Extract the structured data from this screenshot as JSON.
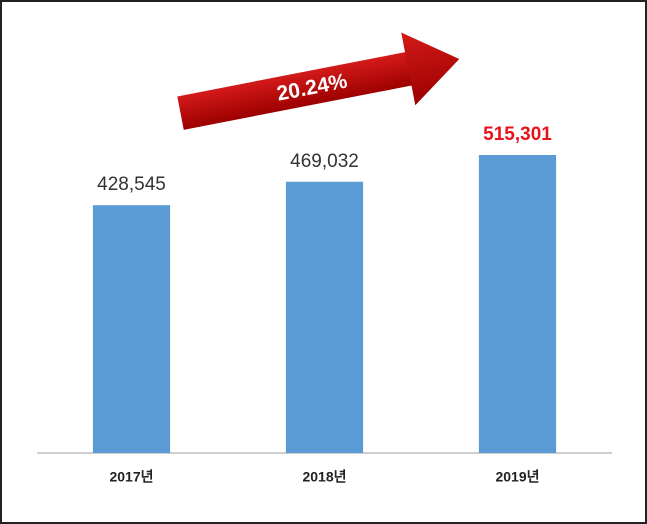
{
  "chart_data": {
    "type": "bar",
    "categories": [
      "2017년",
      "2018년",
      "2019년"
    ],
    "values": [
      428545,
      469032,
      515301
    ],
    "value_labels": [
      "428,545",
      "469,032",
      "515,301"
    ],
    "value_label_colors": [
      "#333333",
      "#333333",
      "#e8141c"
    ],
    "color": "#5b9bd5",
    "annotation": "20.24%"
  }
}
